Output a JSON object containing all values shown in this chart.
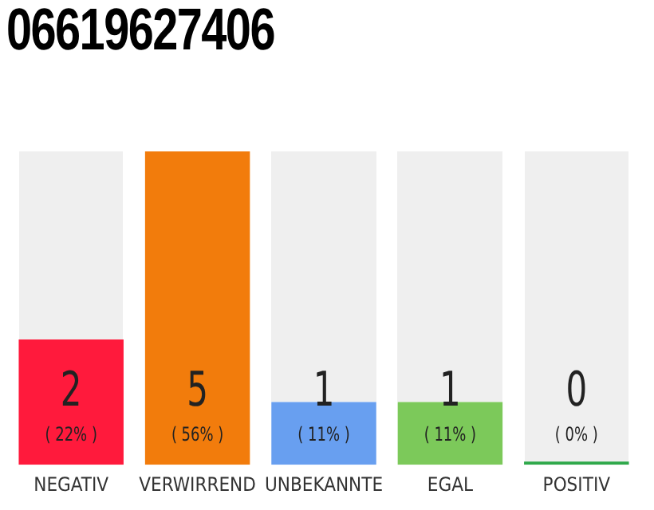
{
  "chart_data": {
    "type": "bar",
    "title": "06619627406",
    "categories": [
      "NEGATIV",
      "VERWIRREND",
      "UNBEKANNTE",
      "EGAL",
      "POSITIV"
    ],
    "values": [
      2,
      5,
      1,
      1,
      0
    ],
    "colors": [
      "#ff1a3c",
      "#f27c0c",
      "#689ff0",
      "#7cc95a",
      "#2ea84a"
    ],
    "data_labels": true,
    "annotations": [
      "( 22% )",
      "( 56% )",
      "( 11% )",
      "( 11% )",
      "( 0% )"
    ],
    "grid": false,
    "legend": false
  }
}
